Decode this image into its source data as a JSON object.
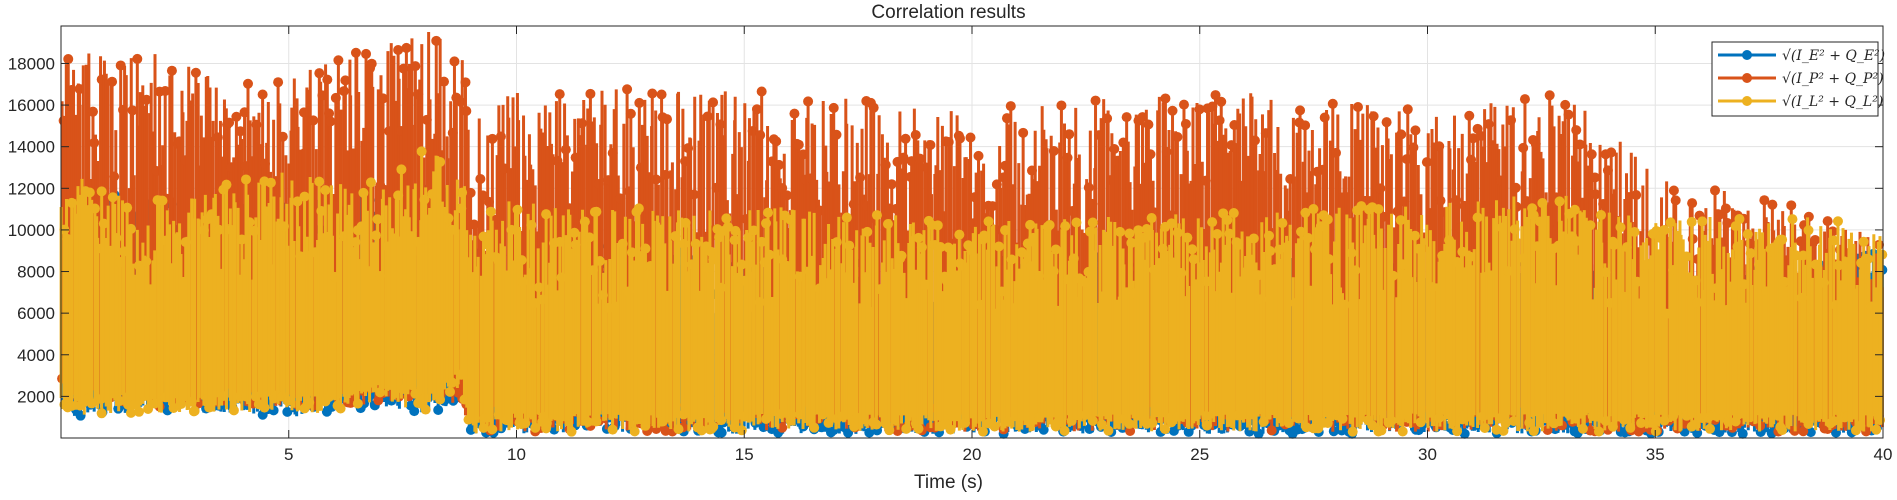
{
  "chart_data": {
    "type": "stem",
    "title": "Correlation results",
    "xlabel": "Time (s)",
    "ylabel": "",
    "xlim": [
      0,
      40
    ],
    "ylim": [
      0,
      19800
    ],
    "xticks": [
      5,
      10,
      15,
      20,
      25,
      30,
      35,
      40
    ],
    "yticks": [
      2000,
      4000,
      6000,
      8000,
      10000,
      12000,
      14000,
      16000,
      18000
    ],
    "grid": true,
    "legend_position": "top-right",
    "series": [
      {
        "name": "√(I_E² + Q_E²)",
        "color": "#0072BD",
        "envelope_x": [
          0,
          1,
          2,
          3,
          4,
          5,
          6,
          7,
          8,
          8.8,
          9,
          10,
          12,
          15,
          20,
          25,
          30,
          33,
          35,
          38,
          40
        ],
        "envelope_max": [
          12500,
          12000,
          11500,
          11500,
          11500,
          11500,
          11500,
          12000,
          12500,
          11500,
          9000,
          9500,
          9500,
          8500,
          8500,
          9000,
          8500,
          9000,
          8000,
          8500,
          9000
        ],
        "envelope_min": [
          800,
          1200,
          1200,
          1200,
          1200,
          1000,
          1200,
          1500,
          1200,
          1500,
          200,
          200,
          300,
          200,
          200,
          200,
          200,
          200,
          200,
          200,
          200
        ]
      },
      {
        "name": "√(I_P² + Q_P²)",
        "color": "#D95319",
        "envelope_x": [
          0,
          1,
          2,
          3,
          4,
          5,
          6,
          7,
          8,
          8.8,
          9,
          10,
          12,
          15,
          20,
          25,
          30,
          33,
          35,
          38,
          40
        ],
        "envelope_max": [
          18800,
          18600,
          18500,
          17800,
          17200,
          17800,
          18600,
          18800,
          19800,
          18500,
          15200,
          16800,
          16800,
          16800,
          15800,
          16800,
          15800,
          16600,
          12800,
          11200,
          9500
        ],
        "envelope_min": [
          1500,
          1500,
          1500,
          1500,
          1500,
          1500,
          1500,
          1500,
          2000,
          1500,
          300,
          300,
          300,
          300,
          300,
          300,
          300,
          300,
          300,
          300,
          300
        ]
      },
      {
        "name": "√(I_L² + Q_L²)",
        "color": "#EDB120",
        "envelope_x": [
          0,
          1,
          2,
          3,
          4,
          5,
          6,
          7,
          8,
          8.8,
          9,
          10,
          12,
          15,
          20,
          25,
          30,
          33,
          35,
          38,
          40
        ],
        "envelope_max": [
          12800,
          12200,
          11500,
          11800,
          12500,
          12800,
          12800,
          12200,
          14000,
          12800,
          11500,
          11500,
          11000,
          11200,
          10500,
          10800,
          11300,
          11800,
          10500,
          10800,
          10200
        ],
        "envelope_min": [
          1000,
          1200,
          1200,
          1200,
          1200,
          1200,
          1200,
          1800,
          1200,
          2500,
          200,
          300,
          300,
          300,
          300,
          300,
          300,
          300,
          300,
          300,
          300
        ]
      }
    ]
  }
}
